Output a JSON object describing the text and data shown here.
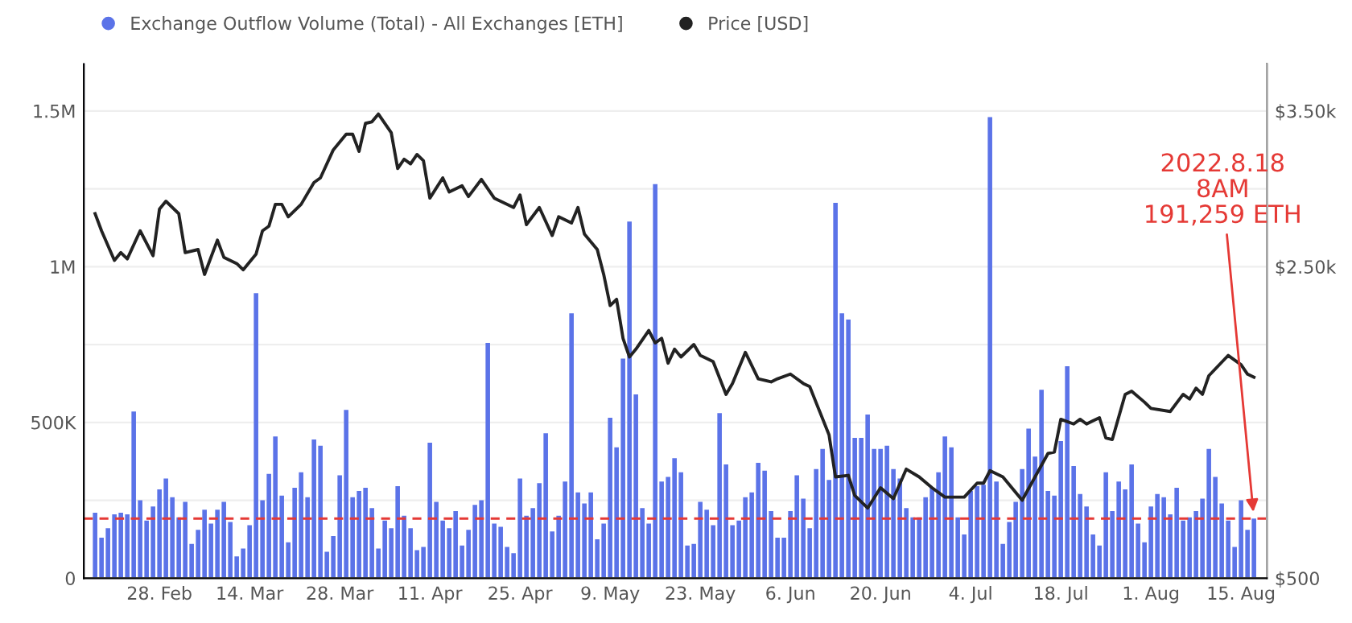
{
  "chart_data": {
    "type": "bar",
    "x": [
      "2022-02-18",
      "2022-02-19",
      "2022-02-20",
      "2022-02-21",
      "2022-02-22",
      "2022-02-23",
      "2022-02-24",
      "2022-02-25",
      "2022-02-26",
      "2022-02-27",
      "2022-02-28",
      "2022-03-01",
      "2022-03-02",
      "2022-03-03",
      "2022-03-04",
      "2022-03-05",
      "2022-03-06",
      "2022-03-07",
      "2022-03-08",
      "2022-03-09",
      "2022-03-10",
      "2022-03-11",
      "2022-03-12",
      "2022-03-13",
      "2022-03-14",
      "2022-03-15",
      "2022-03-16",
      "2022-03-17",
      "2022-03-18",
      "2022-03-19",
      "2022-03-20",
      "2022-03-21",
      "2022-03-22",
      "2022-03-23",
      "2022-03-24",
      "2022-03-25",
      "2022-03-26",
      "2022-03-27",
      "2022-03-28",
      "2022-03-29",
      "2022-03-30",
      "2022-03-31",
      "2022-04-01",
      "2022-04-02",
      "2022-04-03",
      "2022-04-04",
      "2022-04-05",
      "2022-04-06",
      "2022-04-07",
      "2022-04-08",
      "2022-04-09",
      "2022-04-10",
      "2022-04-11",
      "2022-04-12",
      "2022-04-13",
      "2022-04-14",
      "2022-04-15",
      "2022-04-16",
      "2022-04-17",
      "2022-04-18",
      "2022-04-19",
      "2022-04-20",
      "2022-04-21",
      "2022-04-22",
      "2022-04-23",
      "2022-04-24",
      "2022-04-25",
      "2022-04-26",
      "2022-04-27",
      "2022-04-28",
      "2022-04-29",
      "2022-04-30",
      "2022-05-01",
      "2022-05-02",
      "2022-05-03",
      "2022-05-04",
      "2022-05-05",
      "2022-05-06",
      "2022-05-07",
      "2022-05-08",
      "2022-05-09",
      "2022-05-10",
      "2022-05-11",
      "2022-05-12",
      "2022-05-13",
      "2022-05-14",
      "2022-05-15",
      "2022-05-16",
      "2022-05-17",
      "2022-05-18",
      "2022-05-19",
      "2022-05-20",
      "2022-05-21",
      "2022-05-22",
      "2022-05-23",
      "2022-05-24",
      "2022-05-25",
      "2022-05-26",
      "2022-05-27",
      "2022-05-28",
      "2022-05-29",
      "2022-05-30",
      "2022-05-31",
      "2022-06-01",
      "2022-06-02",
      "2022-06-03",
      "2022-06-04",
      "2022-06-05",
      "2022-06-06",
      "2022-06-07",
      "2022-06-08",
      "2022-06-09",
      "2022-06-10",
      "2022-06-11",
      "2022-06-12",
      "2022-06-13",
      "2022-06-14",
      "2022-06-15",
      "2022-06-16",
      "2022-06-17",
      "2022-06-18",
      "2022-06-19",
      "2022-06-20",
      "2022-06-21",
      "2022-06-22",
      "2022-06-23",
      "2022-06-24",
      "2022-06-25",
      "2022-06-26",
      "2022-06-27",
      "2022-06-28",
      "2022-06-29",
      "2022-06-30",
      "2022-07-01",
      "2022-07-02",
      "2022-07-03",
      "2022-07-04",
      "2022-07-05",
      "2022-07-06",
      "2022-07-07",
      "2022-07-08",
      "2022-07-09",
      "2022-07-10",
      "2022-07-11",
      "2022-07-12",
      "2022-07-13",
      "2022-07-14",
      "2022-07-15",
      "2022-07-16",
      "2022-07-17",
      "2022-07-18",
      "2022-07-19",
      "2022-07-20",
      "2022-07-21",
      "2022-07-22",
      "2022-07-23",
      "2022-07-24",
      "2022-07-25",
      "2022-07-26",
      "2022-07-27",
      "2022-07-28",
      "2022-07-29",
      "2022-07-30",
      "2022-07-31",
      "2022-08-01",
      "2022-08-02",
      "2022-08-03",
      "2022-08-04",
      "2022-08-05",
      "2022-08-06",
      "2022-08-07",
      "2022-08-08",
      "2022-08-09",
      "2022-08-10",
      "2022-08-11",
      "2022-08-12",
      "2022-08-13",
      "2022-08-14",
      "2022-08-15",
      "2022-08-16",
      "2022-08-17"
    ],
    "series": [
      {
        "name": "Exchange Outflow Volume (Total) - All Exchanges [ETH]",
        "color": "#5b73e8",
        "values": [
          210000,
          130000,
          160000,
          205000,
          210000,
          205000,
          535000,
          250000,
          185000,
          230000,
          285000,
          320000,
          260000,
          195000,
          245000,
          110000,
          155000,
          220000,
          175000,
          220000,
          245000,
          180000,
          70000,
          95000,
          170000,
          915000,
          250000,
          335000,
          455000,
          265000,
          115000,
          290000,
          340000,
          260000,
          445000,
          425000,
          85000,
          135000,
          330000,
          540000,
          260000,
          280000,
          290000,
          225000,
          95000,
          185000,
          160000,
          295000,
          200000,
          160000,
          90000,
          100000,
          435000,
          245000,
          185000,
          160000,
          215000,
          105000,
          155000,
          235000,
          250000,
          755000,
          175000,
          165000,
          100000,
          80000,
          320000,
          200000,
          225000,
          305000,
          465000,
          150000,
          200000,
          310000,
          850000,
          275000,
          240000,
          275000,
          125000,
          175000,
          515000,
          420000,
          705000,
          1145000,
          590000,
          225000,
          175000,
          1265000,
          310000,
          325000,
          385000,
          340000,
          105000,
          110000,
          245000,
          220000,
          170000,
          530000,
          365000,
          170000,
          185000,
          260000,
          275000,
          370000,
          345000,
          215000,
          130000,
          130000,
          215000,
          330000,
          255000,
          160000,
          350000,
          415000,
          315000,
          1205000,
          850000,
          830000,
          450000,
          450000,
          525000,
          415000,
          415000,
          425000,
          350000,
          320000,
          225000,
          195000,
          195000,
          260000,
          290000,
          340000,
          455000,
          420000,
          195000,
          140000,
          280000,
          295000,
          300000,
          1480000,
          310000,
          110000,
          180000,
          245000,
          350000,
          480000,
          390000,
          605000,
          280000,
          265000,
          440000,
          680000,
          360000,
          270000,
          230000,
          140000,
          105000,
          340000,
          215000,
          310000,
          285000,
          365000,
          175000,
          115000,
          230000,
          270000,
          260000,
          205000,
          290000,
          185000,
          195000,
          215000,
          255000,
          415000,
          325000,
          240000,
          185000,
          100000,
          250000,
          155000,
          191259
        ]
      },
      {
        "name": "Price [USD]",
        "type": "line",
        "axis": "y2",
        "color": "#222222",
        "x": [
          "2022-02-18",
          "2022-02-19",
          "2022-02-21",
          "2022-02-22",
          "2022-02-23",
          "2022-02-25",
          "2022-02-27",
          "2022-02-28",
          "2022-03-01",
          "2022-03-03",
          "2022-03-04",
          "2022-03-06",
          "2022-03-07",
          "2022-03-09",
          "2022-03-10",
          "2022-03-12",
          "2022-03-13",
          "2022-03-15",
          "2022-03-16",
          "2022-03-17",
          "2022-03-18",
          "2022-03-19",
          "2022-03-20",
          "2022-03-22",
          "2022-03-24",
          "2022-03-25",
          "2022-03-27",
          "2022-03-29",
          "2022-03-30",
          "2022-03-31",
          "2022-04-01",
          "2022-04-02",
          "2022-04-03",
          "2022-04-05",
          "2022-04-06",
          "2022-04-07",
          "2022-04-08",
          "2022-04-09",
          "2022-04-10",
          "2022-04-11",
          "2022-04-13",
          "2022-04-14",
          "2022-04-16",
          "2022-04-17",
          "2022-04-19",
          "2022-04-21",
          "2022-04-24",
          "2022-04-25",
          "2022-04-26",
          "2022-04-28",
          "2022-04-30",
          "2022-05-01",
          "2022-05-03",
          "2022-05-04",
          "2022-05-05",
          "2022-05-07",
          "2022-05-08",
          "2022-05-09",
          "2022-05-10",
          "2022-05-11",
          "2022-05-12",
          "2022-05-13",
          "2022-05-15",
          "2022-05-16",
          "2022-05-17",
          "2022-05-18",
          "2022-05-19",
          "2022-05-20",
          "2022-05-22",
          "2022-05-23",
          "2022-05-25",
          "2022-05-27",
          "2022-05-28",
          "2022-05-30",
          "2022-06-01",
          "2022-06-03",
          "2022-06-04",
          "2022-06-06",
          "2022-06-08",
          "2022-06-09",
          "2022-06-12",
          "2022-06-13",
          "2022-06-15",
          "2022-06-16",
          "2022-06-18",
          "2022-06-20",
          "2022-06-22",
          "2022-06-24",
          "2022-06-26",
          "2022-06-28",
          "2022-06-30",
          "2022-07-03",
          "2022-07-05",
          "2022-07-06",
          "2022-07-07",
          "2022-07-09",
          "2022-07-12",
          "2022-07-14",
          "2022-07-16",
          "2022-07-17",
          "2022-07-18",
          "2022-07-20",
          "2022-07-21",
          "2022-07-22",
          "2022-07-23",
          "2022-07-24",
          "2022-07-25",
          "2022-07-26",
          "2022-07-28",
          "2022-07-29",
          "2022-07-31",
          "2022-08-01",
          "2022-08-04",
          "2022-08-06",
          "2022-08-07",
          "2022-08-08",
          "2022-08-09",
          "2022-08-10",
          "2022-08-13",
          "2022-08-15",
          "2022-08-16",
          "2022-08-17"
        ],
        "values": [
          2840,
          2730,
          2540,
          2590,
          2550,
          2730,
          2570,
          2870,
          2920,
          2840,
          2590,
          2610,
          2450,
          2670,
          2560,
          2520,
          2480,
          2580,
          2730,
          2760,
          2900,
          2900,
          2820,
          2900,
          3040,
          3070,
          3250,
          3350,
          3350,
          3240,
          3420,
          3430,
          3480,
          3360,
          3130,
          3190,
          3160,
          3220,
          3180,
          2940,
          3070,
          2980,
          3020,
          2950,
          3060,
          2940,
          2880,
          2960,
          2770,
          2880,
          2700,
          2820,
          2780,
          2880,
          2710,
          2610,
          2450,
          2250,
          2290,
          2040,
          1920,
          1970,
          2090,
          2010,
          2040,
          1880,
          1970,
          1920,
          2000,
          1930,
          1890,
          1680,
          1750,
          1950,
          1780,
          1760,
          1780,
          1810,
          1750,
          1730,
          1420,
          1150,
          1160,
          1030,
          950,
          1080,
          1010,
          1200,
          1150,
          1080,
          1020,
          1020,
          1110,
          1110,
          1190,
          1150,
          1000,
          1150,
          1300,
          1310,
          1520,
          1490,
          1520,
          1490,
          1510,
          1530,
          1400,
          1390,
          1680,
          1700,
          1630,
          1590,
          1570,
          1680,
          1650,
          1720,
          1680,
          1800,
          1930,
          1870,
          1810,
          1790
        ]
      }
    ],
    "xlim": [
      "2022-02-16T06:00",
      "2022-08-19"
    ],
    "xticks": [
      {
        "value": "2022-02-28",
        "label": "28. Feb"
      },
      {
        "value": "2022-03-14",
        "label": "14. Mar"
      },
      {
        "value": "2022-03-28",
        "label": "28. Mar"
      },
      {
        "value": "2022-04-11",
        "label": "11. Apr"
      },
      {
        "value": "2022-04-25",
        "label": "25. Apr"
      },
      {
        "value": "2022-05-09",
        "label": "9. May"
      },
      {
        "value": "2022-05-23",
        "label": "23. May"
      },
      {
        "value": "2022-06-06",
        "label": "6. Jun"
      },
      {
        "value": "2022-06-20",
        "label": "20. Jun"
      },
      {
        "value": "2022-07-04",
        "label": "4. Jul"
      },
      {
        "value": "2022-07-18",
        "label": "18. Jul"
      },
      {
        "value": "2022-08-01",
        "label": "1. Aug"
      },
      {
        "value": "2022-08-15",
        "label": "15. Aug"
      }
    ],
    "ylim": [
      0,
      1650000
    ],
    "yticks": [
      0,
      {
        "value": 250000,
        "label": null
      },
      {
        "value": 500000,
        "label": "500K"
      },
      {
        "value": 750000,
        "label": null
      },
      {
        "value": 1000000,
        "label": "1M"
      },
      {
        "value": 1250000,
        "label": null
      },
      {
        "value": 1500000,
        "label": "1.5M"
      }
    ],
    "y2lim": [
      500,
      3800
    ],
    "y2ticks": [
      {
        "value": 500,
        "label": "$500"
      },
      {
        "value": 1500,
        "label": null
      },
      {
        "value": 2500,
        "label": "$2.50k"
      },
      {
        "value": 3500,
        "label": "$3.50k"
      }
    ],
    "ref_lines": [
      {
        "axis": "y",
        "value": 191259,
        "color": "#e53935",
        "line_style": "dashed"
      }
    ],
    "annotations": [
      {
        "text": "2022.8.18\n8AM\n191,259 ETH",
        "x": "2022-08-17",
        "y": 191259
      }
    ],
    "grid": "y",
    "legend": "top left"
  }
}
